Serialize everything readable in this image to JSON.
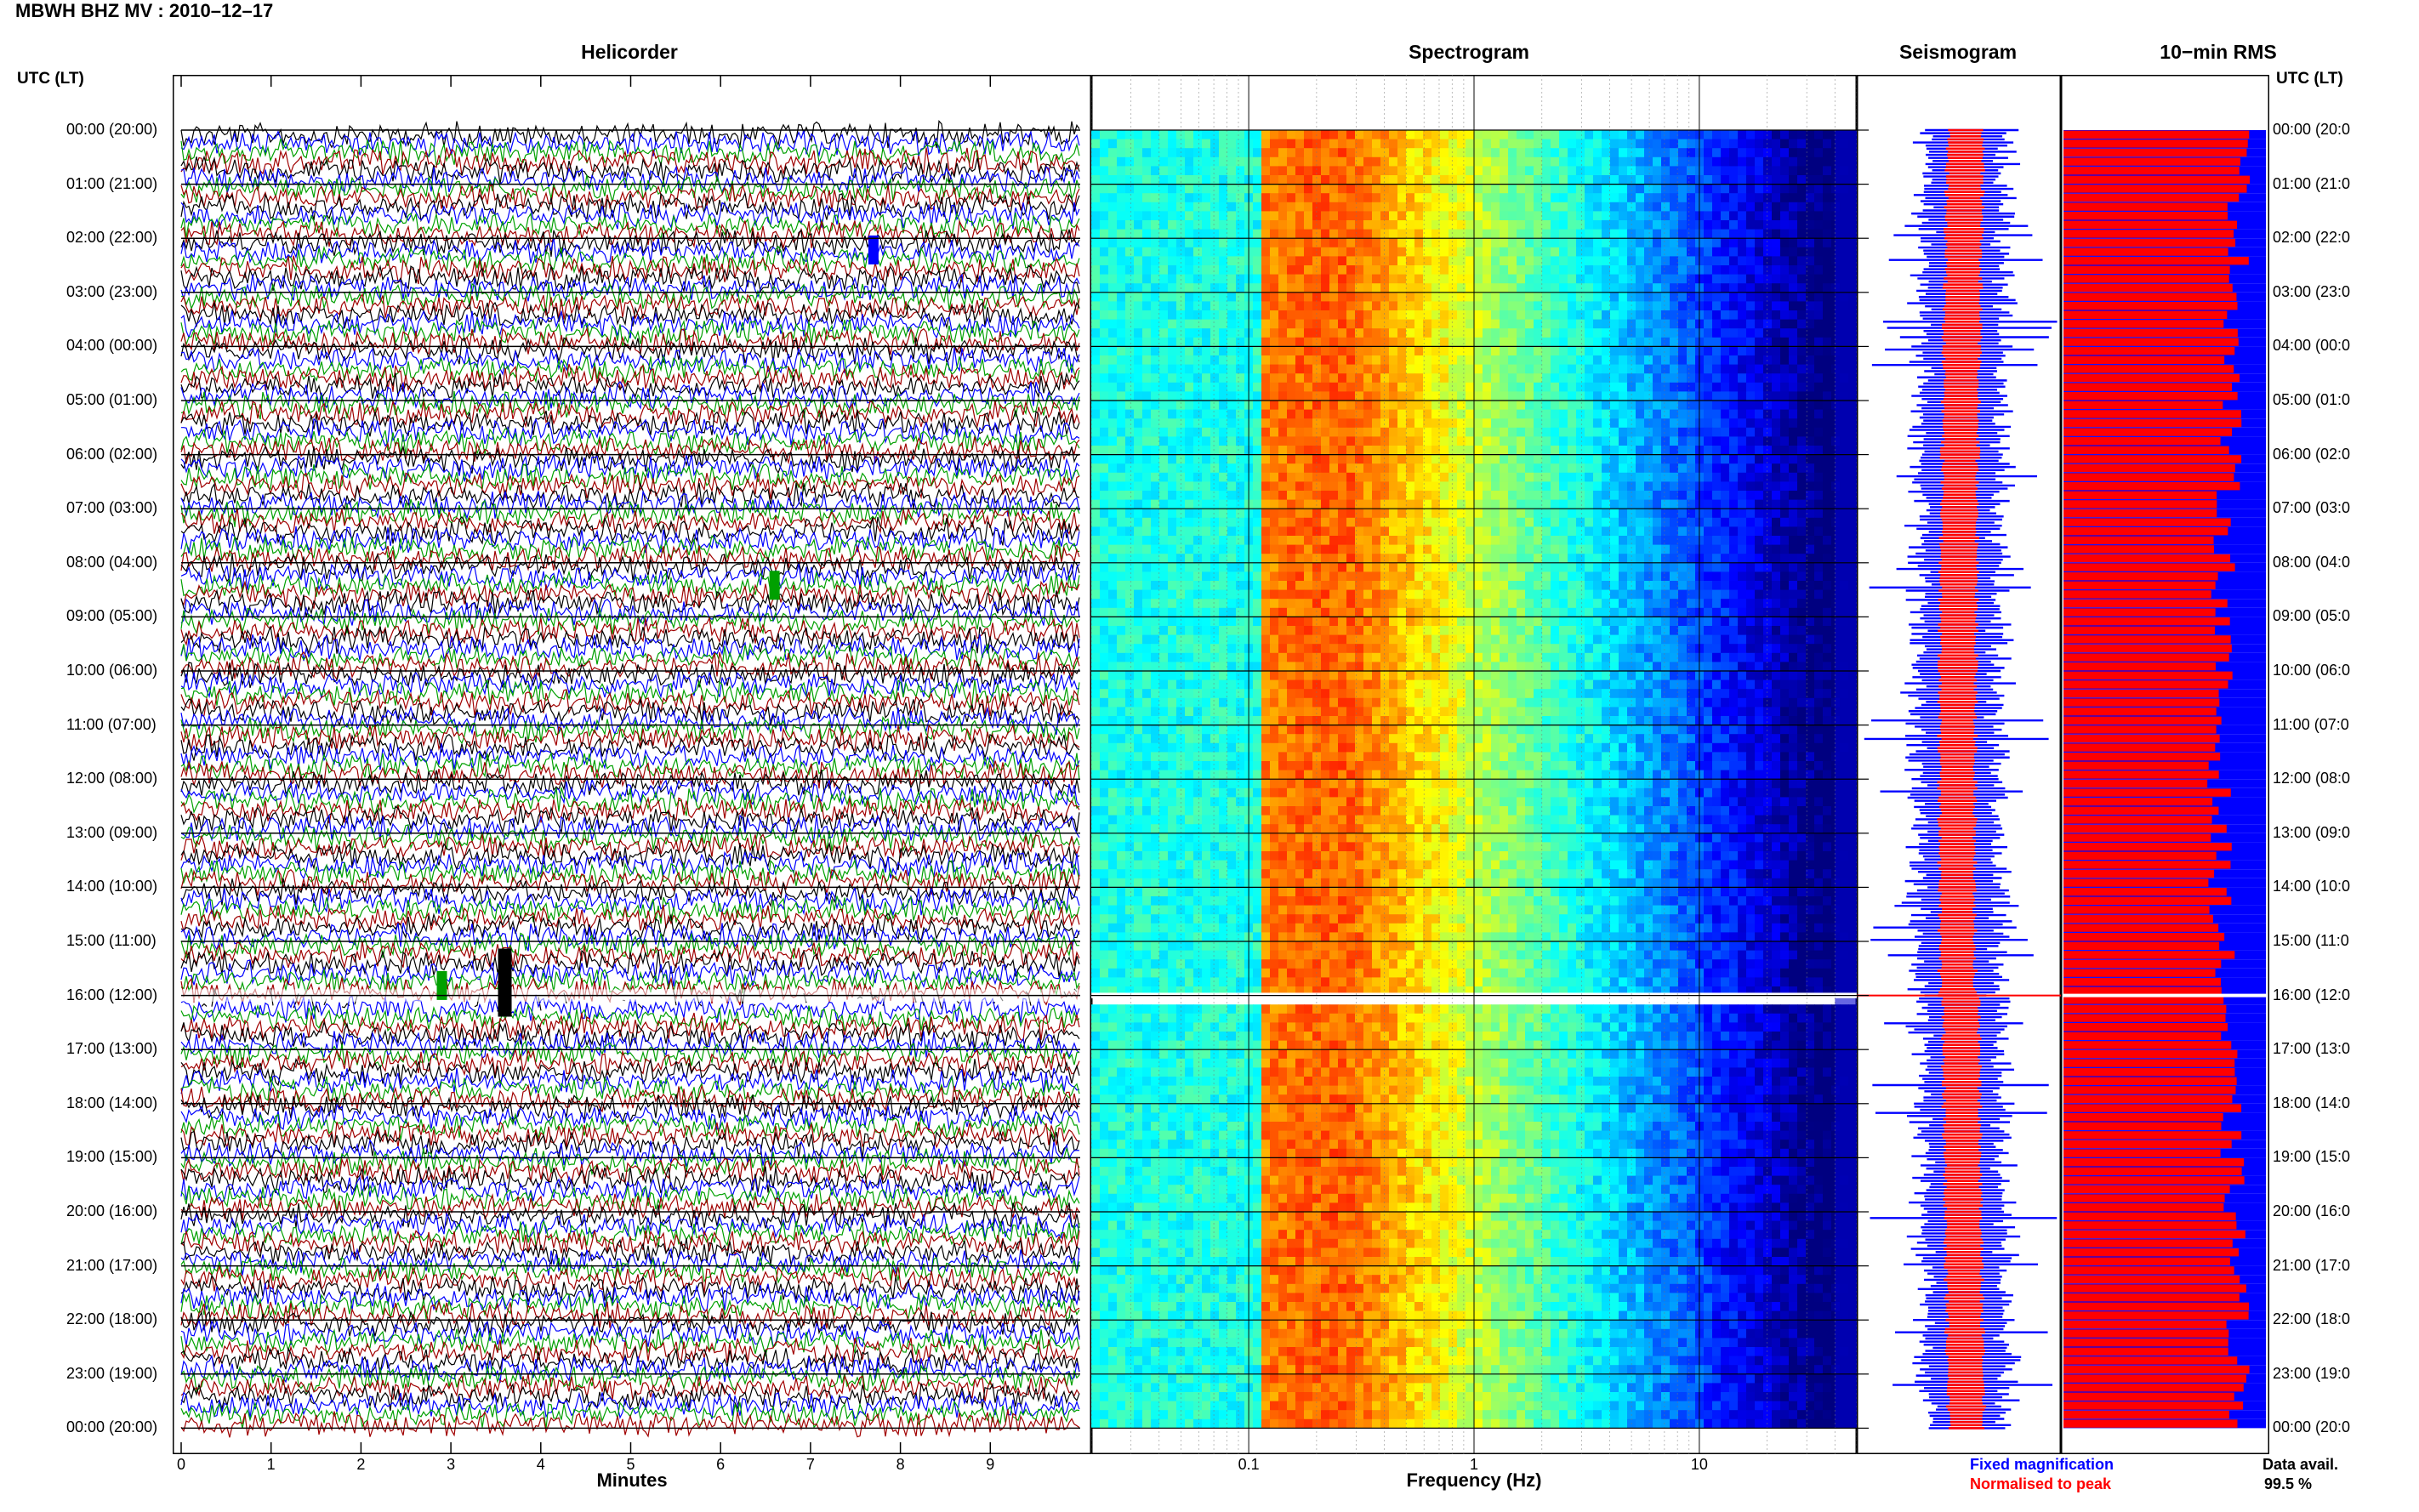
{
  "header": {
    "title": "MBWH BHZ MV : 2010–12–17"
  },
  "colors": {
    "fixed_magnification": "#0000ff",
    "normalised": "#ff0000",
    "trace_colors": [
      "#000000",
      "#0000ff",
      "#00a000",
      "#a00000"
    ],
    "gap": "#ffffff"
  },
  "chart_data": [
    {
      "type": "line",
      "title": "Helicorder",
      "xlabel": "Minutes",
      "ylabel": "UTC (LT)",
      "xlim": [
        0,
        10
      ],
      "x_ticks": [
        "0",
        "1",
        "2",
        "3",
        "4",
        "5",
        "6",
        "7",
        "8",
        "9"
      ],
      "y_tick_labels_left": [
        "00:00 (20:00)",
        "01:00 (21:00)",
        "02:00 (22:00)",
        "03:00 (23:00)",
        "04:00 (00:00)",
        "05:00 (01:00)",
        "06:00 (02:00)",
        "07:00 (03:00)",
        "08:00 (04:00)",
        "09:00 (05:00)",
        "10:00 (06:00)",
        "11:00 (07:00)",
        "12:00 (08:00)",
        "13:00 (09:00)",
        "14:00 (10:00)",
        "15:00 (11:00)",
        "16:00 (12:00)",
        "17:00 (13:00)",
        "18:00 (14:00)",
        "19:00 (15:00)",
        "20:00 (16:00)",
        "21:00 (17:00)",
        "22:00 (18:00)",
        "23:00 (19:00)",
        "00:00 (20:00)"
      ],
      "rows_per_hour": 6,
      "events": [
        {
          "hour": 2.2,
          "minute": 7.7,
          "color": "#0000ff"
        },
        {
          "hour": 8.4,
          "minute": 6.6,
          "color": "#00a000"
        },
        {
          "hour": 15.7,
          "minute": 3.6,
          "color": "#000000"
        },
        {
          "hour": 15.8,
          "minute": 2.9,
          "color": "#00a000"
        }
      ],
      "data_gap_hours": [
        15.95,
        16.05
      ]
    },
    {
      "type": "heatmap",
      "title": "Spectrogram",
      "xlabel": "Frequency (Hz)",
      "x_scale": "log",
      "xlim": [
        0.02,
        50
      ],
      "x_ticks": [
        "0.1",
        "1",
        "10"
      ],
      "peak_band_hz": [
        0.15,
        0.5
      ],
      "colormap": "jet",
      "data_gap_hours": [
        15.95,
        16.05
      ]
    },
    {
      "type": "line",
      "title": "Seismogram",
      "series": [
        {
          "name": "Fixed magnification",
          "color": "#0000ff"
        },
        {
          "name": "Normalised to peak",
          "color": "#ff0000"
        }
      ]
    },
    {
      "type": "bar",
      "title": "10−min RMS",
      "orientation": "horizontal",
      "rows": 144,
      "red_fraction_mean": 0.82,
      "blue_fraction": 1.0,
      "data_availability_label": "Data avail.",
      "data_availability": "99.5 %"
    }
  ],
  "right_axis_label": "UTC (LT)",
  "right_tick_labels": [
    "00:00 (20:0",
    "01:00 (21:0",
    "02:00 (22:0",
    "03:00 (23:0",
    "04:00 (00:0",
    "05:00 (01:0",
    "06:00 (02:0",
    "07:00 (03:0",
    "08:00 (04:0",
    "09:00 (05:0",
    "10:00 (06:0",
    "11:00 (07:0",
    "12:00 (08:0",
    "13:00 (09:0",
    "14:00 (10:0",
    "15:00 (11:0",
    "16:00 (12:0",
    "17:00 (13:0",
    "18:00 (14:0",
    "19:00 (15:0",
    "20:00 (16:0",
    "21:00 (17:0",
    "22:00 (18:0",
    "23:00 (19:0",
    "00:00 (20:0"
  ]
}
